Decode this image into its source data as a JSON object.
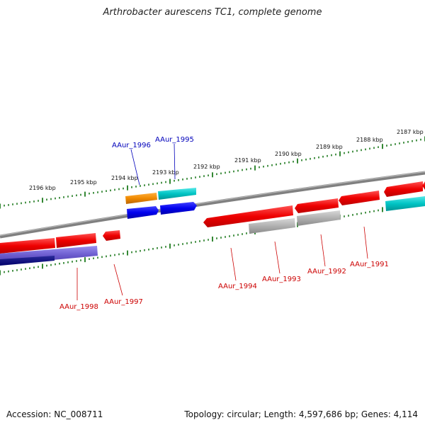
{
  "title": "Arthrobacter aurescens TC1, complete genome",
  "footer": {
    "accession": "Accession: NC_008711",
    "summary": "Topology: circular; Length: 4,597,686 bp; Genes: 4,114"
  },
  "colors": {
    "backbone": "#7a7a7a",
    "ticks": "#1e7a1e",
    "label_plus": "#0000bb",
    "label_minus": "#cc0000"
  },
  "kbp_ticks": [
    "2196 kbp",
    "2195 kbp",
    "2194 kbp",
    "2193 kbp",
    "2192 kbp",
    "2191 kbp",
    "2190 kbp",
    "2189 kbp",
    "2188 kbp",
    "2187 kbp"
  ],
  "gene_labels": {
    "plus": [
      "AAur_1996",
      "AAur_1995"
    ],
    "minus": [
      "AAur_1998",
      "AAur_1997",
      "AAur_1994",
      "AAur_1993",
      "AAur_1992",
      "AAur_1991"
    ]
  }
}
